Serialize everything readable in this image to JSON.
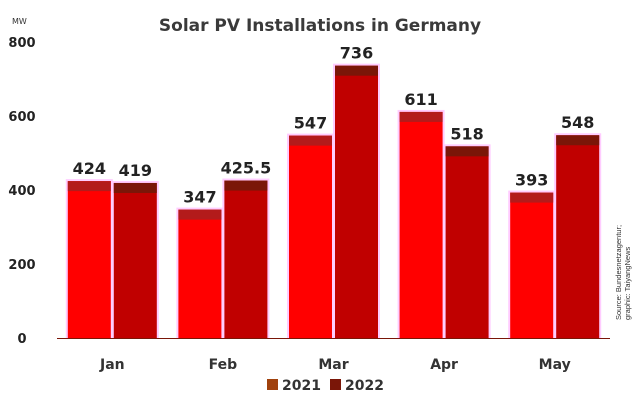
{
  "chart_data": {
    "type": "bar",
    "title": "Solar PV Installations in Germany",
    "unit_label": "MW",
    "categories": [
      "Jan",
      "Feb",
      "Mar",
      "Apr",
      "May"
    ],
    "series": [
      {
        "name": "2021",
        "values": [
          424,
          347,
          547,
          611,
          393
        ],
        "labels": [
          "424",
          "347",
          "547",
          "611",
          "393"
        ]
      },
      {
        "name": "2022",
        "values": [
          419,
          425.5,
          736,
          518,
          548
        ],
        "labels": [
          "419",
          "425.5",
          "736",
          "518",
          "548"
        ]
      }
    ],
    "ylim": [
      0,
      800
    ],
    "yticks": [
      0,
      200,
      400,
      600,
      800
    ],
    "ytick_labels": [
      "0",
      "200",
      "400",
      "600",
      "800"
    ],
    "grid": false,
    "legend_position": "bottom",
    "source_lines": [
      "Source: Bundesnetzagentur;",
      "graphic: TaiyangNews"
    ],
    "colors": {
      "bar_2021": "#ff0000",
      "bar_2022": "#c00000",
      "bar_top_2021": "#b31b1b",
      "bar_top_2022": "#7a1608",
      "bar_glow": "#ffccff",
      "legend_2021": "#a0410d",
      "legend_2022": "#7a1608"
    }
  }
}
